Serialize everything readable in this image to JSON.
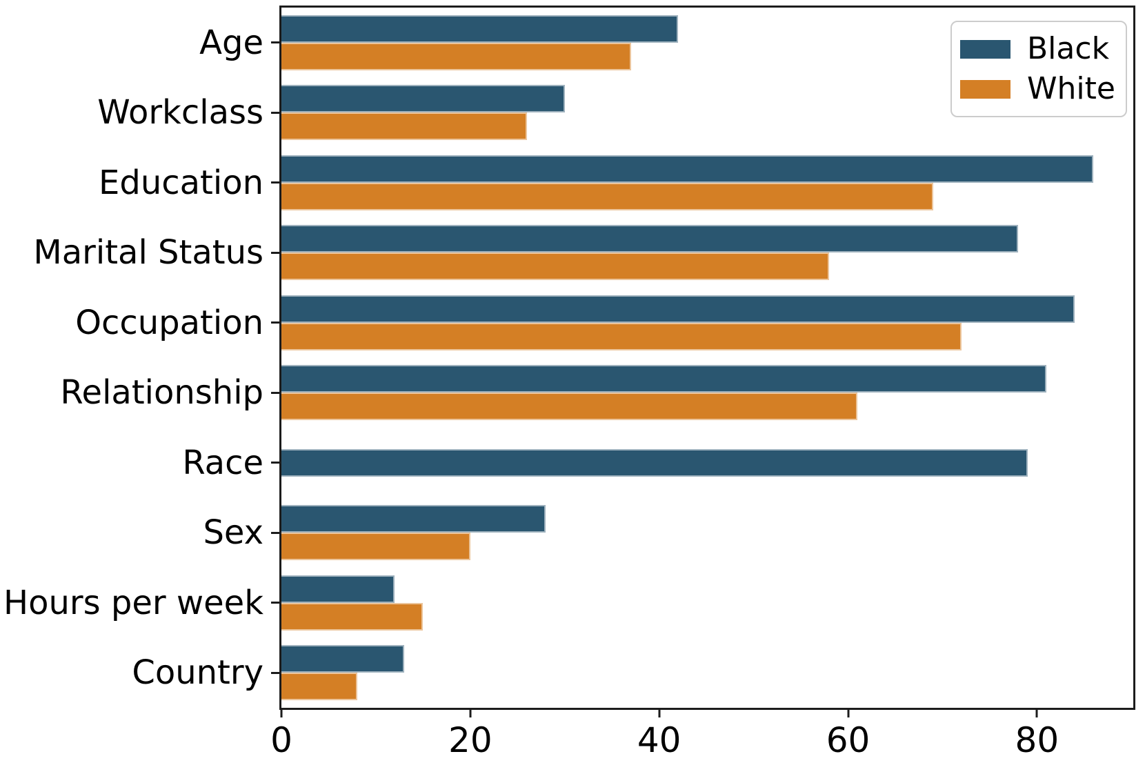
{
  "chart_data": {
    "type": "bar",
    "orientation": "horizontal",
    "title": "",
    "xlabel": "",
    "ylabel": "",
    "categories": [
      "Age",
      "Workclass",
      "Education",
      "Marital Status",
      "Occupation",
      "Relationship",
      "Race",
      "Sex",
      "Hours per week",
      "Country"
    ],
    "series": [
      {
        "name": "Black",
        "color": "#2a5670",
        "values": [
          42,
          30,
          86,
          78,
          84,
          81,
          79,
          28,
          12,
          13
        ]
      },
      {
        "name": "White",
        "color": "#d47f25",
        "values": [
          37,
          26,
          69,
          58,
          72,
          61,
          0,
          20,
          15,
          8
        ]
      }
    ],
    "xticks": [
      "0",
      "20",
      "40",
      "60",
      "80"
    ],
    "xtick_values": [
      0,
      20,
      40,
      60,
      80
    ],
    "xlim": [
      0,
      90.2
    ],
    "grid": false,
    "legend": {
      "position": "upper right",
      "entries": [
        "Black",
        "White"
      ]
    }
  },
  "colors": {
    "background": "#ffffff",
    "spine": "#1c1c1c",
    "legend_border": "#cccccc",
    "series_black": "#2a5670",
    "series_white": "#d47f25"
  }
}
